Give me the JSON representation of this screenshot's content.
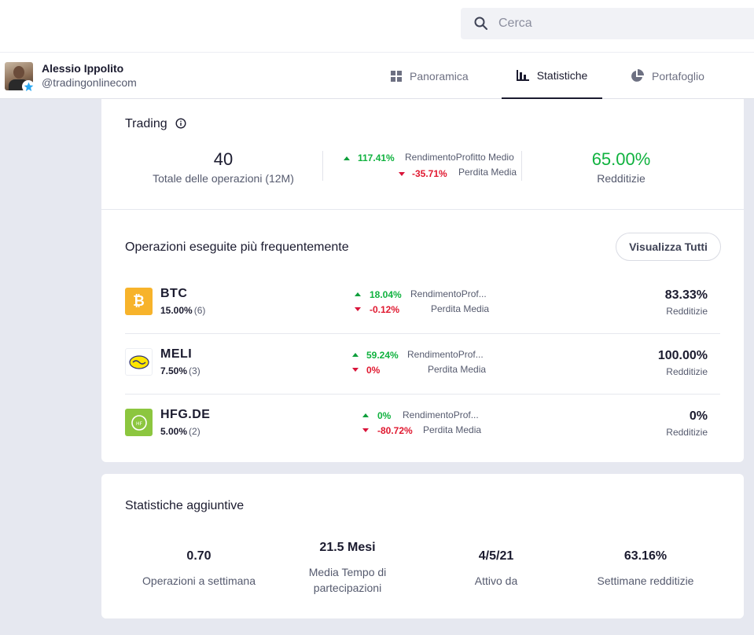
{
  "search": {
    "placeholder": "Cerca"
  },
  "user": {
    "name": "Alessio Ippolito",
    "handle": "@tradingonlinecom"
  },
  "tabs": [
    {
      "label": "Panoramica",
      "icon": "grid-icon"
    },
    {
      "label": "Statistiche",
      "icon": "bar-chart-icon",
      "active": true
    },
    {
      "label": "Portafoglio",
      "icon": "pie-chart-icon"
    }
  ],
  "trading": {
    "title": "Trading",
    "total_ops": "40",
    "total_ops_label": "Totale delle operazioni (12M)",
    "avg_profit": "117.41%",
    "avg_profit_label": "RendimentoProfitto Medio",
    "avg_loss": "-35.71%",
    "avg_loss_label": "Perdita Media",
    "profitable": "65.00%",
    "profitable_label": "Redditizie"
  },
  "frequent": {
    "title": "Operazioni eseguite più frequentemente",
    "view_all": "Visualizza Tutti",
    "items": [
      {
        "ticker": "BTC",
        "alloc": "15.00%",
        "count": "(6)",
        "profit": "18.04%",
        "profit_label": "RendimentoProf...",
        "loss": "-0.12%",
        "loss_label": "Perdita Media",
        "pct": "83.33%",
        "pct_label": "Redditizie"
      },
      {
        "ticker": "MELI",
        "alloc": "7.50%",
        "count": "(3)",
        "profit": "59.24%",
        "profit_label": "RendimentoProf...",
        "loss": "0%",
        "loss_label": "Perdita Media",
        "pct": "100.00%",
        "pct_label": "Redditizie"
      },
      {
        "ticker": "HFG.DE",
        "alloc": "5.00%",
        "count": "(2)",
        "profit": "0%",
        "profit_label": "RendimentoProf...",
        "loss": "-80.72%",
        "loss_label": "Perdita Media",
        "pct": "0%",
        "pct_label": "Redditizie"
      }
    ]
  },
  "extra": {
    "title": "Statistiche aggiuntive",
    "stats": [
      {
        "value": "0.70",
        "label": "Operazioni a settimana"
      },
      {
        "value": "21.5 Mesi",
        "label": "Media Tempo di partecipazioni"
      },
      {
        "value": "4/5/21",
        "label": "Attivo da"
      },
      {
        "value": "63.16%",
        "label": "Settimane redditizie"
      }
    ]
  },
  "colors": {
    "positive": "#10b23f",
    "negative": "#e0182f",
    "btc": "#f7b32b",
    "hfg": "#8cc63f"
  }
}
